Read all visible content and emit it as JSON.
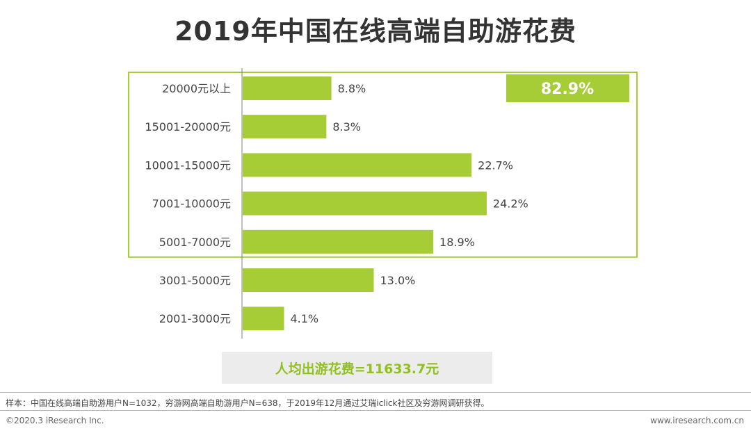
{
  "title": "2019年中国在线高端自助游花费",
  "chart_data": {
    "type": "bar",
    "orientation": "horizontal",
    "categories": [
      "20000元以上",
      "15001-20000元",
      "10001-15000元",
      "7001-10000元",
      "5001-7000元",
      "3001-5000元",
      "2001-3000元"
    ],
    "values": [
      8.8,
      8.3,
      22.7,
      24.2,
      18.9,
      13.0,
      4.1
    ],
    "value_labels": [
      "8.8%",
      "8.3%",
      "22.7%",
      "24.2%",
      "18.9%",
      "13.0%",
      "4.1%"
    ],
    "unit": "%",
    "xlim": [
      0,
      25
    ],
    "highlight": {
      "categories": [
        "20000元以上",
        "15001-20000元",
        "10001-15000元",
        "7001-10000元",
        "5001-7000元"
      ],
      "total_label": "82.9%"
    },
    "average_label": "人均出游花费=11633.7元"
  },
  "colors": {
    "bar": "#a6cc36",
    "highlight": "#a6cc36",
    "average_text": "#92c01f",
    "axis": "#7f7f7f"
  },
  "footer": {
    "note": "样本：中国在线高端自助游用户N=1032，穷游网高端自助游用户N=638，于2019年12月通过艾瑞iclick社区及穷游网调研获得。",
    "copyright": "©2020.3 iResearch Inc.",
    "website": "www.iresearch.com.cn"
  }
}
